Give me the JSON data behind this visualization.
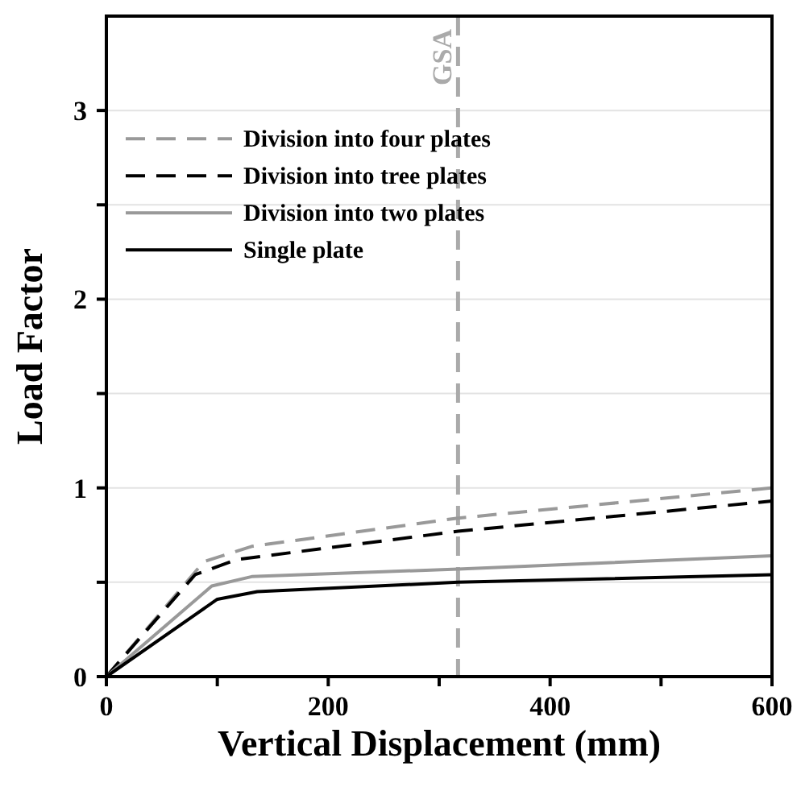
{
  "chart_data": {
    "type": "line",
    "xlabel": "Vertical Displacement (mm)",
    "ylabel": "Load Factor",
    "xlim": [
      0,
      600
    ],
    "xticks": [
      0,
      {
        "value": 100,
        "label": null
      },
      200,
      {
        "value": 300,
        "label": null
      },
      400,
      {
        "value": 500,
        "label": null
      },
      600
    ],
    "ylim": [
      0,
      3.5
    ],
    "yticks": [
      0,
      {
        "value": 0.5,
        "label": null
      },
      1,
      {
        "value": 1.5,
        "label": null
      },
      2,
      {
        "value": 2.5,
        "label": null
      },
      3
    ],
    "grid": "y",
    "legend": "top left",
    "marker": "none",
    "ref_lines": [
      {
        "axis": "x",
        "value": 317,
        "label": "GSA",
        "color": "#aaaaaa",
        "line_style": "dashed"
      }
    ],
    "series": [
      {
        "name": "Division into four plates",
        "color": "#999999",
        "line_style": "dashed",
        "x": [
          0,
          88,
          131,
          317,
          600
        ],
        "values": [
          0,
          0.61,
          0.69,
          0.84,
          1.0
        ]
      },
      {
        "name": "Division into tree plates",
        "color": "#000000",
        "line_style": "dashed",
        "x": [
          0,
          80,
          117,
          317,
          600
        ],
        "values": [
          0,
          0.54,
          0.62,
          0.77,
          0.93
        ]
      },
      {
        "name": "Division into two plates",
        "color": "#999999",
        "line_style": "solid",
        "x": [
          0,
          95,
          131,
          317,
          600
        ],
        "values": [
          0,
          0.48,
          0.53,
          0.57,
          0.64
        ]
      },
      {
        "name": "Single plate",
        "color": "#000000",
        "line_style": "solid",
        "x": [
          0,
          100,
          136,
          317,
          600
        ],
        "values": [
          0,
          0.41,
          0.45,
          0.5,
          0.54
        ]
      }
    ]
  }
}
